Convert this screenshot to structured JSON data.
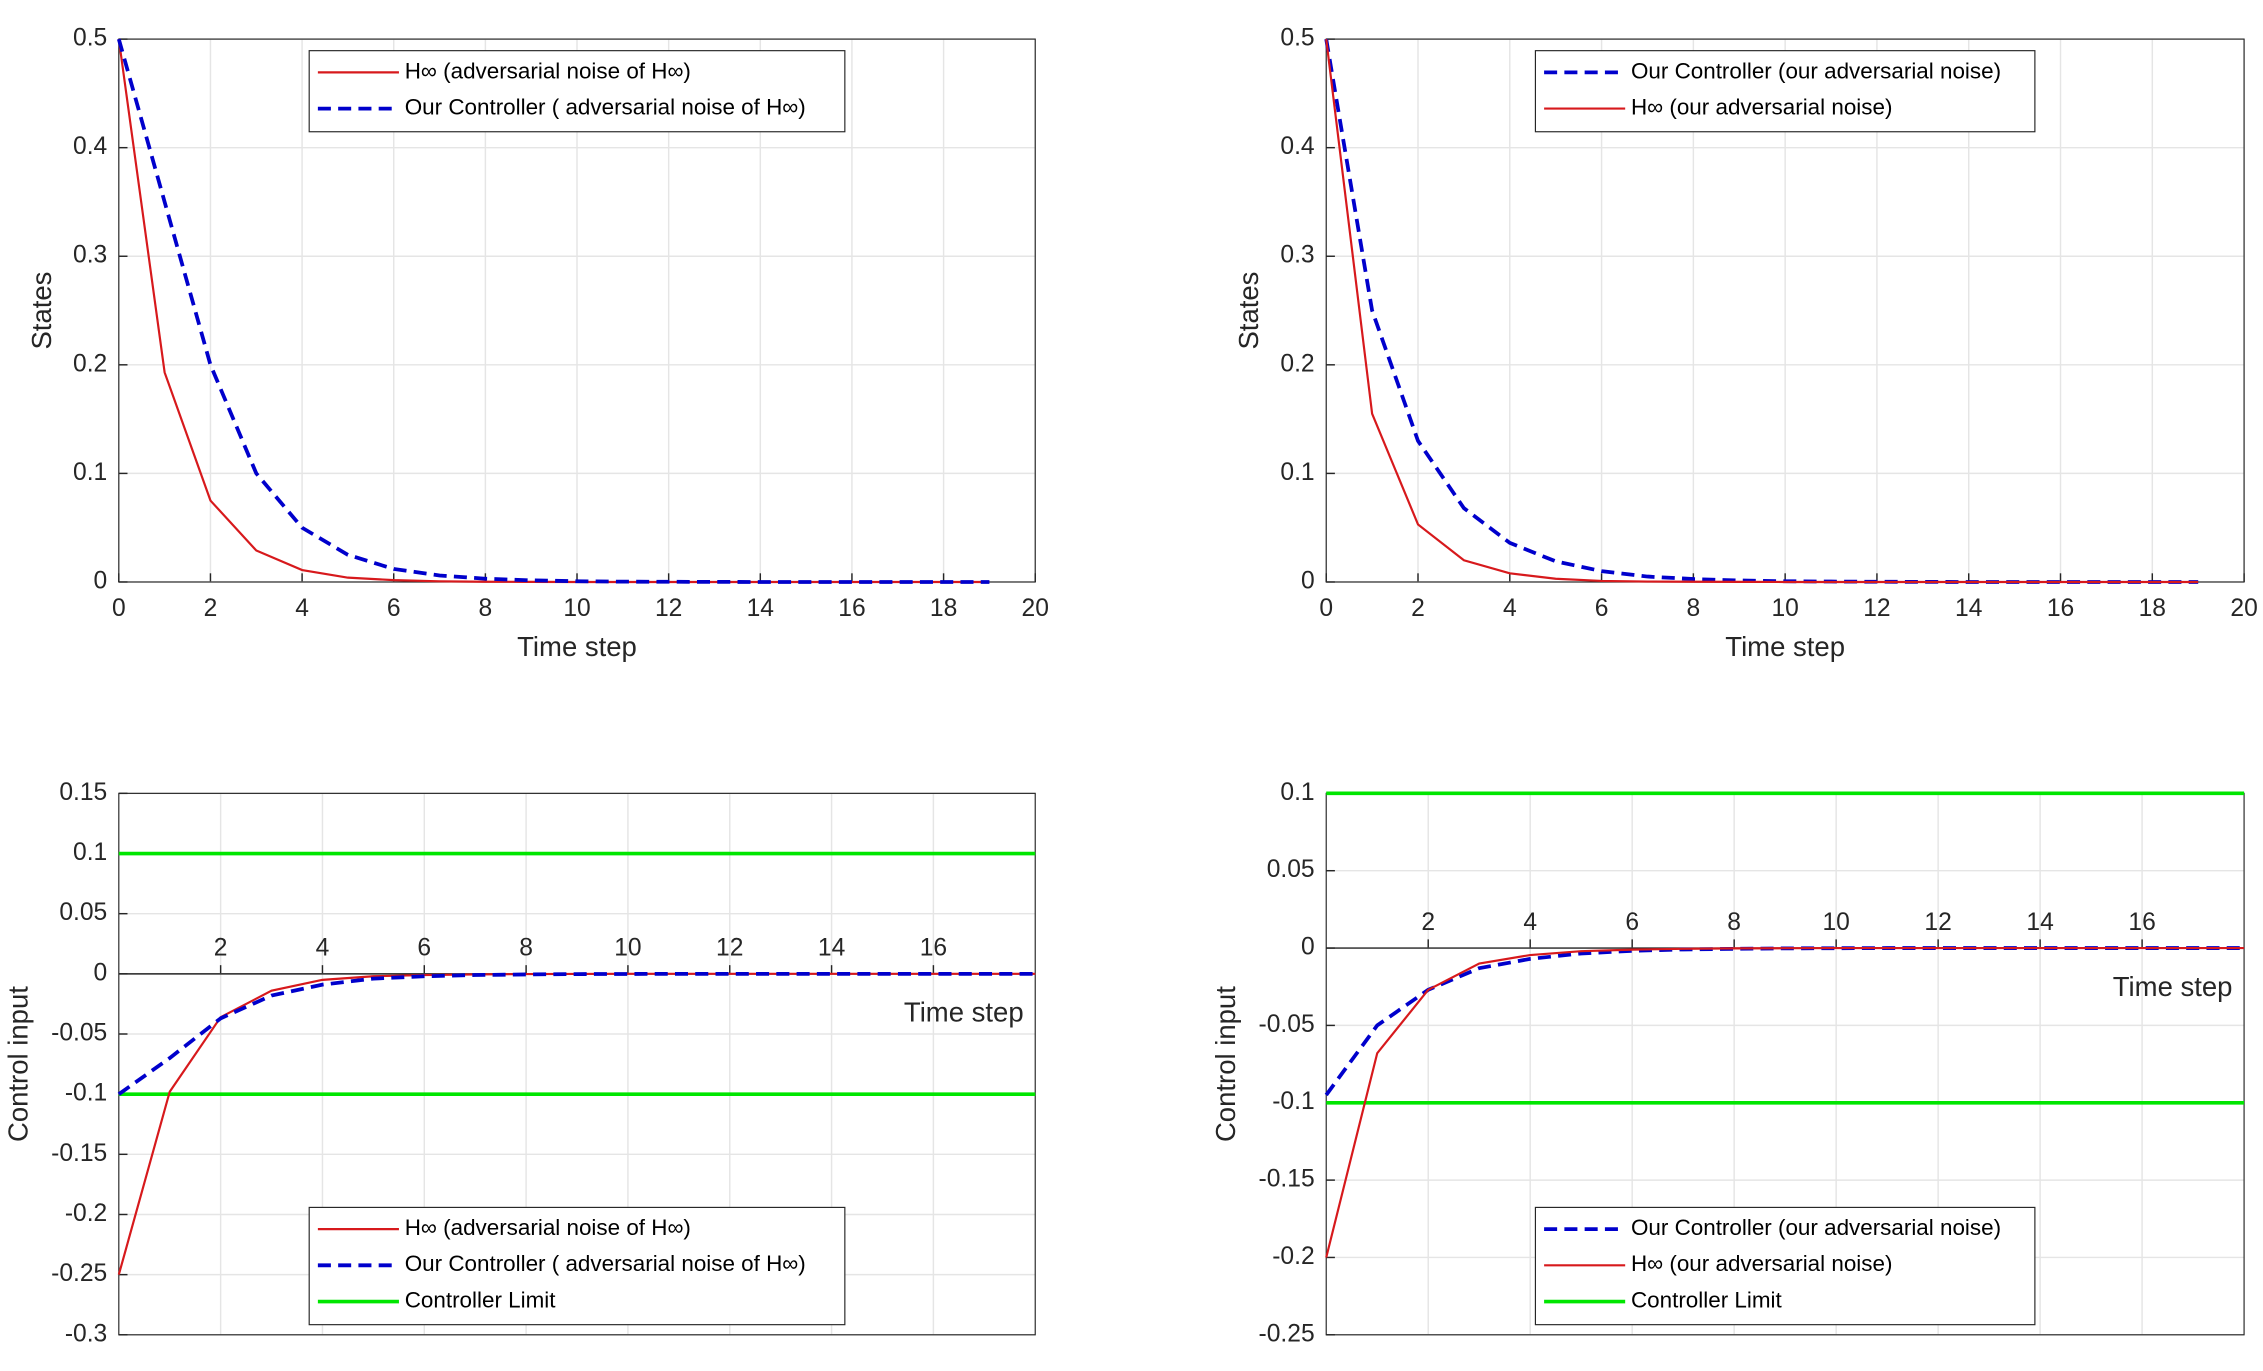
{
  "chart_data": [
    {
      "type": "line",
      "xlabel": "Time step",
      "ylabel": "States",
      "x_axis_location": "bottom",
      "legend": "north",
      "grid": true,
      "x": [
        0,
        1,
        2,
        3,
        4,
        5,
        6,
        7,
        8,
        9,
        10,
        11,
        12,
        13,
        14,
        15,
        16,
        17,
        18,
        19
      ],
      "xlim": [
        0,
        20
      ],
      "xticks": [
        0,
        2,
        4,
        6,
        8,
        10,
        12,
        14,
        16,
        18,
        20
      ],
      "ylim": [
        0,
        0.5
      ],
      "yticks": [
        0,
        0.1,
        0.2,
        0.3,
        0.4,
        0.5
      ],
      "series": [
        {
          "name": "H∞ (adversarial noise of H∞)",
          "color": "#d7191c",
          "linestyle": "-",
          "values": [
            0.5,
            0.193,
            0.075,
            0.029,
            0.011,
            0.004,
            0.0017,
            0.0006,
            0.0002,
            0.0001,
            0,
            0,
            0,
            0,
            0,
            0,
            0,
            0,
            0,
            0
          ]
        },
        {
          "name": "Our Controller ( adversarial noise of H∞)",
          "color": "#0000cc",
          "linestyle": "--",
          "values": [
            0.5,
            0.35,
            0.2,
            0.1,
            0.05,
            0.025,
            0.012,
            0.006,
            0.003,
            0.0015,
            0.0007,
            0.0003,
            0.0002,
            0.0001,
            0,
            0,
            0,
            0,
            0,
            0
          ]
        }
      ]
    },
    {
      "type": "line",
      "xlabel": "Time step",
      "ylabel": "States",
      "x_axis_location": "bottom",
      "legend": "north",
      "grid": true,
      "x": [
        0,
        1,
        2,
        3,
        4,
        5,
        6,
        7,
        8,
        9,
        10,
        11,
        12,
        13,
        14,
        15,
        16,
        17,
        18,
        19
      ],
      "xlim": [
        0,
        20
      ],
      "xticks": [
        0,
        2,
        4,
        6,
        8,
        10,
        12,
        14,
        16,
        18,
        20
      ],
      "ylim": [
        0,
        0.5
      ],
      "yticks": [
        0,
        0.1,
        0.2,
        0.3,
        0.4,
        0.5
      ],
      "series": [
        {
          "name": "Our Controller (our adversarial noise)",
          "color": "#0000cc",
          "linestyle": "--",
          "values": [
            0.5,
            0.25,
            0.13,
            0.068,
            0.036,
            0.019,
            0.01,
            0.005,
            0.0027,
            0.0014,
            0.0007,
            0.0004,
            0.0002,
            0.0001,
            0,
            0,
            0,
            0,
            0,
            0
          ]
        },
        {
          "name": "H∞ (our adversarial noise)",
          "color": "#d7191c",
          "linestyle": "-",
          "values": [
            0.5,
            0.155,
            0.053,
            0.02,
            0.008,
            0.003,
            0.001,
            0.0004,
            0.0002,
            0.0001,
            0,
            0,
            0,
            0,
            0,
            0,
            0,
            0,
            0,
            0
          ]
        }
      ]
    },
    {
      "type": "line",
      "xlabel": "Time step",
      "ylabel": "Control input",
      "x_axis_location": "origin",
      "legend": "south",
      "grid": true,
      "x": [
        0,
        1,
        2,
        3,
        4,
        5,
        6,
        7,
        8,
        9,
        10,
        11,
        12,
        13,
        14,
        15,
        16,
        17,
        18
      ],
      "xlim": [
        0,
        18
      ],
      "xticks": [
        2,
        4,
        6,
        8,
        10,
        12,
        14,
        16
      ],
      "ylim": [
        -0.3,
        0.15
      ],
      "yticks": [
        -0.3,
        -0.25,
        -0.2,
        -0.15,
        -0.1,
        -0.05,
        0,
        0.05,
        0.1,
        0.15
      ],
      "series": [
        {
          "name": "H∞ (adversarial noise of H∞)",
          "color": "#d7191c",
          "linestyle": "-",
          "values": [
            -0.25,
            -0.098,
            -0.036,
            -0.014,
            -0.005,
            -0.002,
            -0.001,
            -0.0005,
            -0.0002,
            -0.0001,
            0,
            0,
            0,
            0,
            0,
            0,
            0,
            0,
            0
          ]
        },
        {
          "name": "Our Controller ( adversarial noise of H∞)",
          "color": "#0000cc",
          "linestyle": "--",
          "values": [
            -0.1,
            -0.07,
            -0.037,
            -0.018,
            -0.009,
            -0.004,
            -0.002,
            -0.001,
            -0.0005,
            -0.0002,
            -0.0001,
            0,
            0,
            0,
            0,
            0,
            0,
            0,
            0
          ]
        }
      ],
      "limit": {
        "name": "Controller Limit",
        "color": "#00e600",
        "values": [
          0.1,
          -0.1
        ]
      }
    },
    {
      "type": "line",
      "xlabel": "Time step",
      "ylabel": "Control input",
      "x_axis_location": "origin",
      "legend": "south",
      "grid": true,
      "x": [
        0,
        1,
        2,
        3,
        4,
        5,
        6,
        7,
        8,
        9,
        10,
        11,
        12,
        13,
        14,
        15,
        16,
        17,
        18
      ],
      "xlim": [
        0,
        18
      ],
      "xticks": [
        2,
        4,
        6,
        8,
        10,
        12,
        14,
        16
      ],
      "ylim": [
        -0.25,
        0.1
      ],
      "yticks": [
        -0.25,
        -0.2,
        -0.15,
        -0.1,
        -0.05,
        0,
        0.05,
        0.1
      ],
      "series": [
        {
          "name": "Our Controller (our adversarial noise)",
          "color": "#0000cc",
          "linestyle": "--",
          "values": [
            -0.095,
            -0.05,
            -0.027,
            -0.013,
            -0.007,
            -0.0035,
            -0.0018,
            -0.0009,
            -0.0005,
            -0.0002,
            -0.0001,
            0,
            0,
            0,
            0,
            0,
            0,
            0,
            0
          ]
        },
        {
          "name": "H∞ (our adversarial noise)",
          "color": "#d7191c",
          "linestyle": "-",
          "values": [
            -0.2,
            -0.068,
            -0.027,
            -0.01,
            -0.0045,
            -0.002,
            -0.001,
            -0.0005,
            -0.0002,
            -0.0001,
            0,
            0,
            0,
            0,
            0,
            0,
            0,
            0,
            0
          ]
        }
      ],
      "limit": {
        "name": "Controller Limit",
        "color": "#00e600",
        "values": [
          0.1,
          -0.1
        ]
      }
    }
  ]
}
